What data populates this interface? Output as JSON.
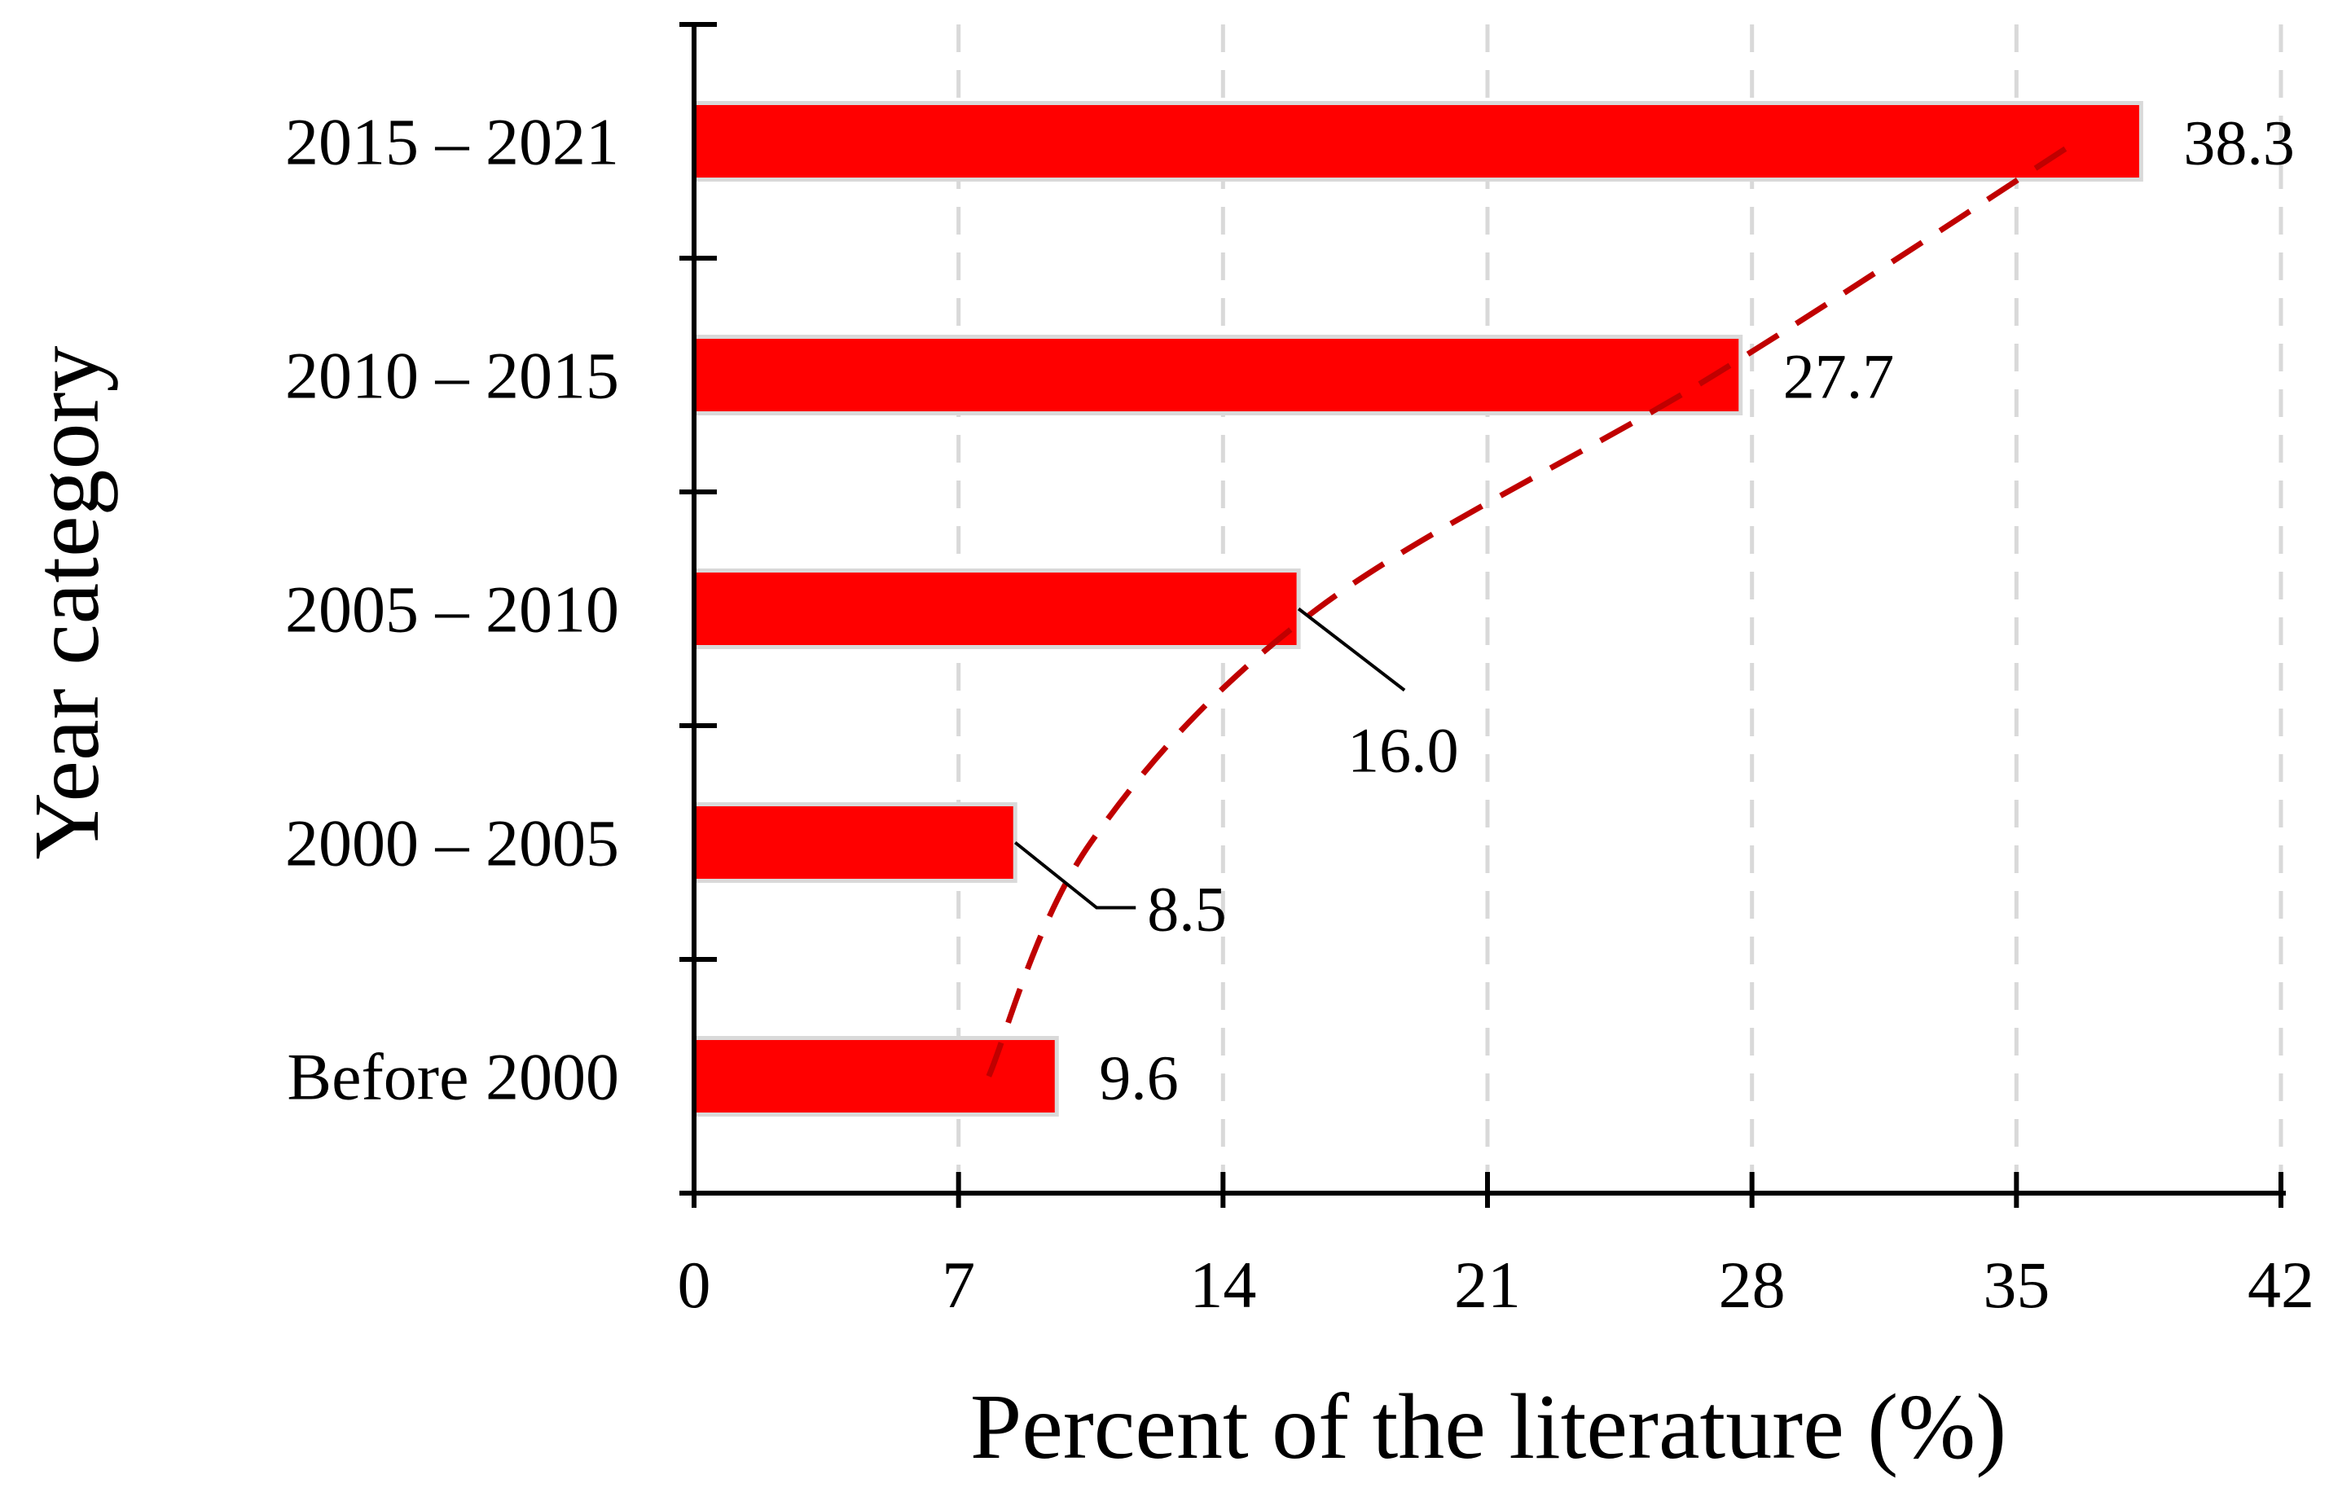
{
  "chart_data": {
    "type": "bar",
    "orientation": "horizontal",
    "categories": [
      "Before 2000",
      "2000 – 2005",
      "2005 – 2010",
      "2010 – 2015",
      "2015 – 2021"
    ],
    "values": [
      9.6,
      8.5,
      16.0,
      27.7,
      38.3
    ],
    "data_labels": [
      "9.6",
      "8.5",
      "16.0",
      "27.7",
      "38.3"
    ],
    "xlabel": "Percent of the literature (%)",
    "ylabel": "Year category",
    "xlim": [
      0,
      42
    ],
    "xticks": [
      0,
      7,
      14,
      21,
      28,
      35,
      42
    ],
    "xtick_labels": [
      "0",
      "7",
      "14",
      "21",
      "28",
      "35",
      "42"
    ],
    "grid": "vertical dashed",
    "trendline": {
      "style": "dashed",
      "shape": "logarithmic",
      "x": [
        7.8,
        10.5,
        16.5,
        27.0,
        36.6
      ],
      "y_category_index": [
        0,
        1,
        2,
        3,
        4
      ]
    },
    "colors": {
      "bar": "#ff0000",
      "bar_edge": "#d9d9d9",
      "trendline": "#c00000",
      "grid": "#d9d9d9",
      "axis": "#000000"
    }
  }
}
